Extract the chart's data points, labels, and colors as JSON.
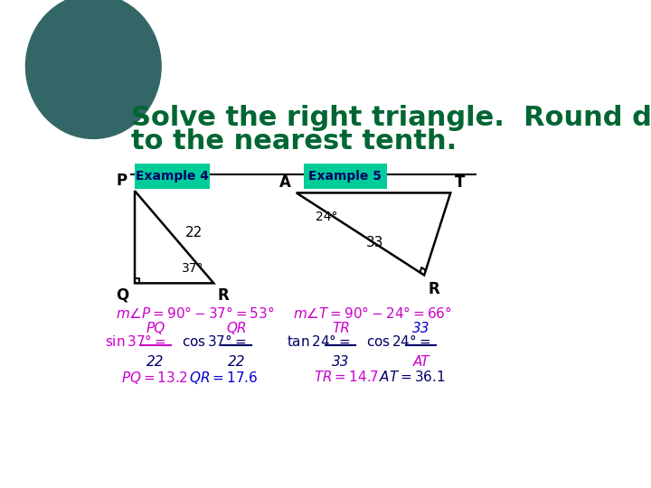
{
  "title_line1": "Solve the right triangle.  Round decimals",
  "title_line2": "to the nearest tenth.",
  "title_color": "#006633",
  "title_fontsize": 22,
  "bg_color": "#ffffff",
  "example4_label": "Example 4",
  "example5_label": "Example 5",
  "label_bg": "#00cc99",
  "label_text_color": "#000066",
  "eq_color_purple": "#cc00cc",
  "eq_color_blue": "#0000cc",
  "eq_color_dark": "#000066",
  "circle_color": "#336666"
}
